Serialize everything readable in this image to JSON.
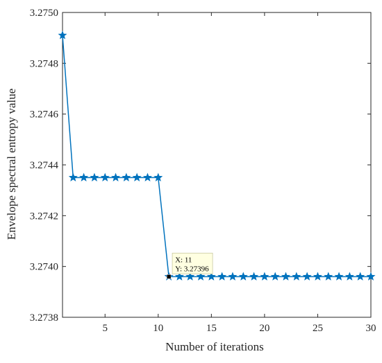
{
  "chart_data": {
    "type": "line",
    "title": "",
    "xlabel": "Number of iterations",
    "ylabel": "Envelope spectral entropy value",
    "xlim": [
      1,
      30
    ],
    "ylim": [
      3.2738,
      3.275
    ],
    "xticks": [
      5,
      10,
      15,
      20,
      25,
      30
    ],
    "xtick_labels": [
      "5",
      "10",
      "15",
      "20",
      "25",
      "30"
    ],
    "yticks": [
      3.2738,
      3.274,
      3.2742,
      3.2744,
      3.2746,
      3.2748,
      3.275
    ],
    "ytick_labels": [
      "3.2738",
      "3.2740",
      "3.2742",
      "3.2744",
      "3.2746",
      "3.2748",
      "3.2750"
    ],
    "grid": false,
    "box": true,
    "series": [
      {
        "color": "#0072BD",
        "marker": "star",
        "x": [
          1,
          2,
          3,
          4,
          5,
          6,
          7,
          8,
          9,
          10,
          11,
          12,
          13,
          14,
          15,
          16,
          17,
          18,
          19,
          20,
          21,
          22,
          23,
          24,
          25,
          26,
          27,
          28,
          29,
          30
        ],
        "y": [
          3.27491,
          3.27435,
          3.27435,
          3.27435,
          3.27435,
          3.27435,
          3.27435,
          3.27435,
          3.27435,
          3.27435,
          3.27396,
          3.27396,
          3.27396,
          3.27396,
          3.27396,
          3.27396,
          3.27396,
          3.27396,
          3.27396,
          3.27396,
          3.27396,
          3.27396,
          3.27396,
          3.27396,
          3.27396,
          3.27396,
          3.27396,
          3.27396,
          3.27396,
          3.27396
        ]
      }
    ],
    "datatip": {
      "x": 11,
      "y": 3.27396,
      "line1": "X: 11",
      "line2": "Y: 3.27396"
    }
  }
}
